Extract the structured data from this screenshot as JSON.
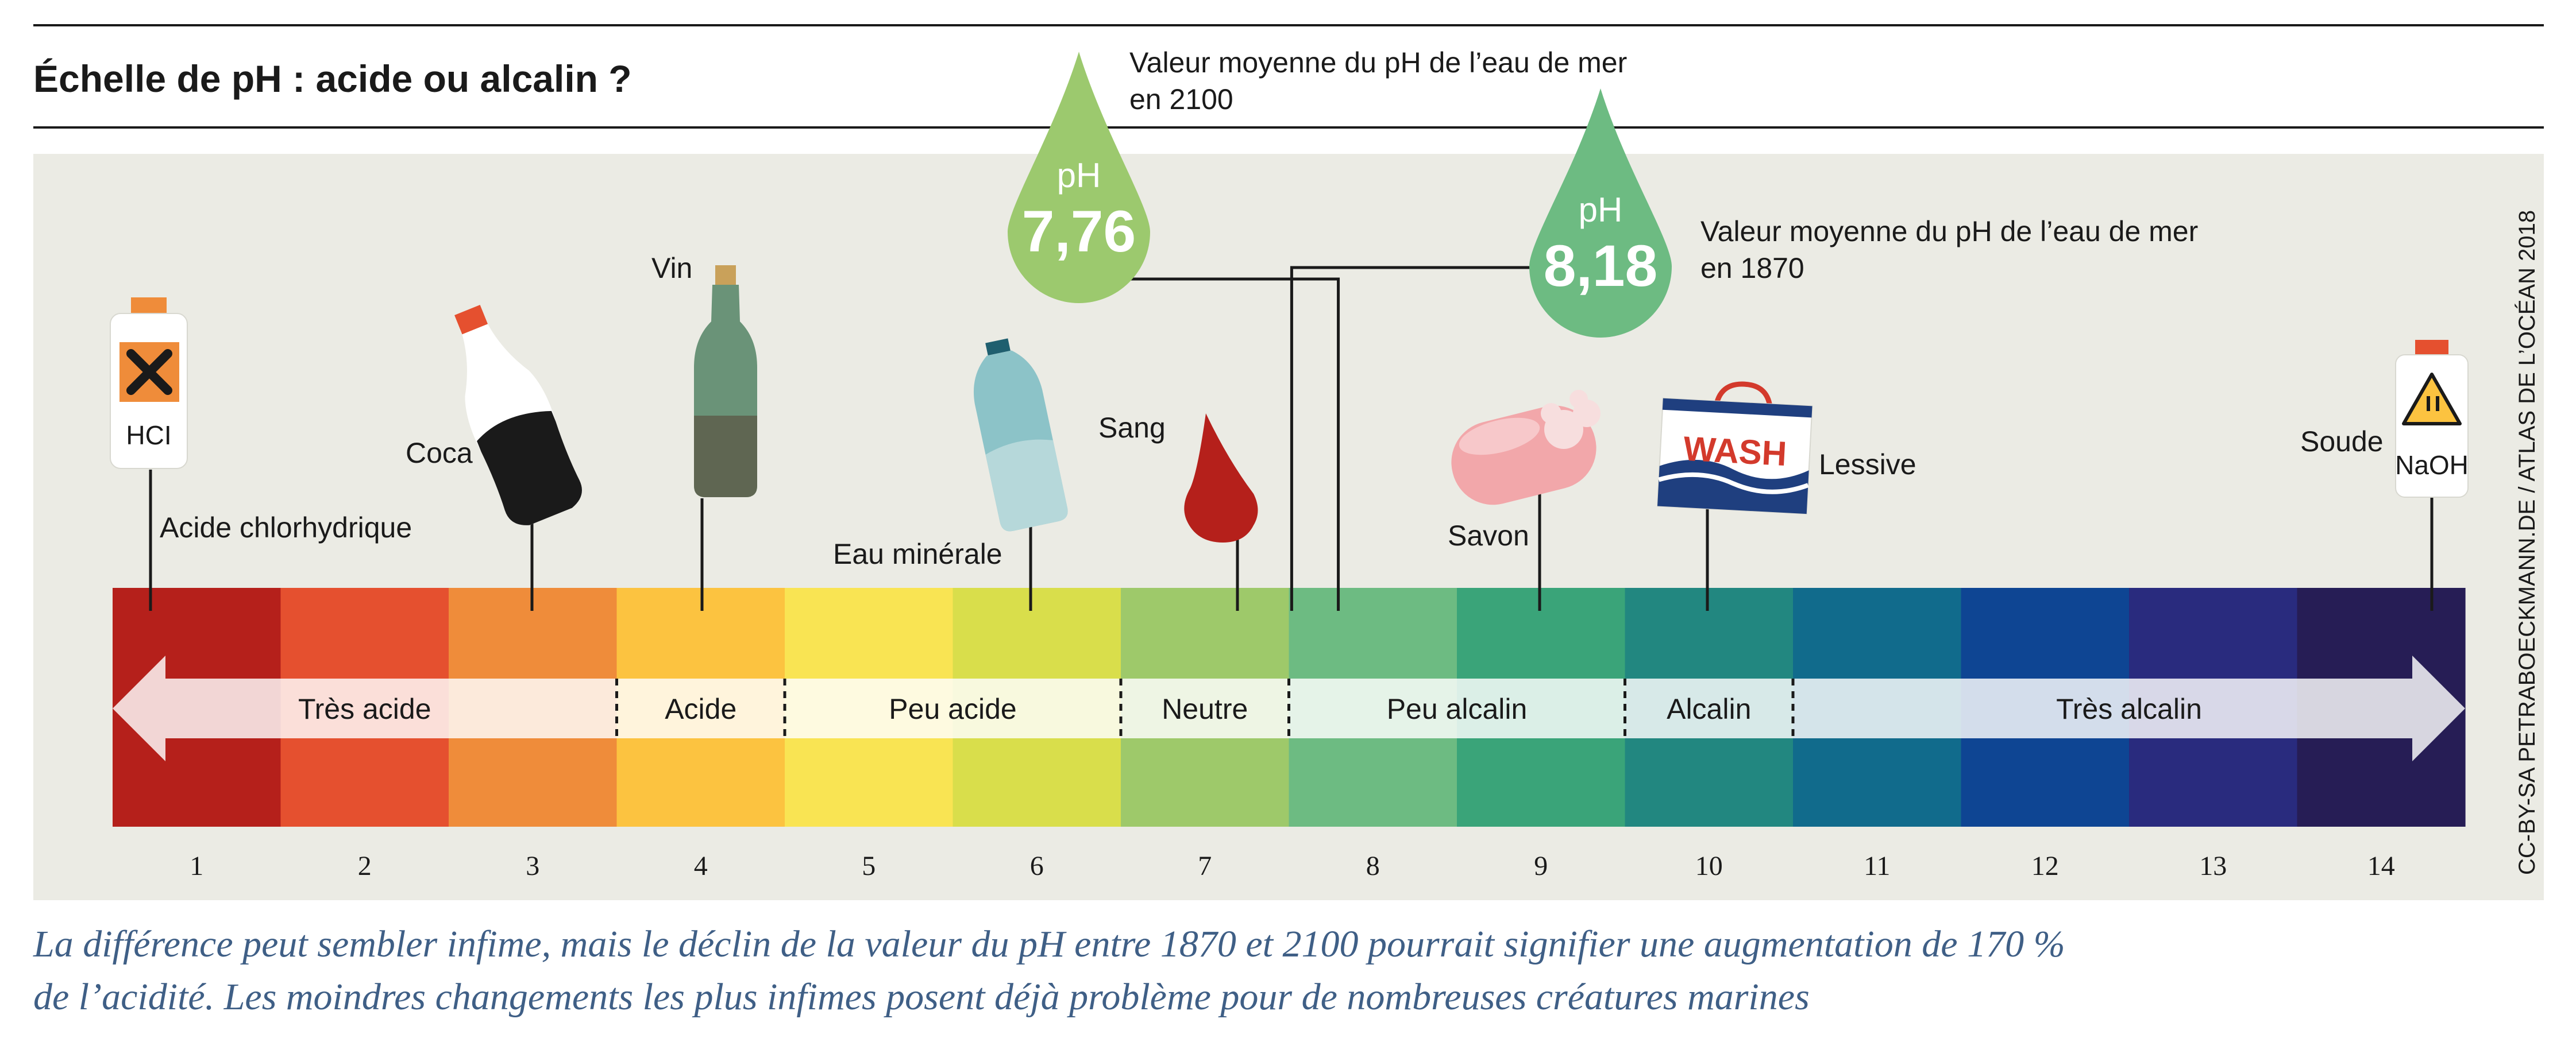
{
  "title": "Échelle de pH : acide ou alcalin ?",
  "scale": {
    "numbers": [
      "1",
      "2",
      "3",
      "4",
      "5",
      "6",
      "7",
      "8",
      "9",
      "10",
      "11",
      "12",
      "13",
      "14"
    ],
    "colors": [
      "#b5201b",
      "#e5502f",
      "#ef8c3a",
      "#fcc340",
      "#f9e453",
      "#d9de4b",
      "#9ec96a",
      "#6dbb82",
      "#3aa479",
      "#228780",
      "#116b8c",
      "#0e4593",
      "#292b7e",
      "#261d55"
    ],
    "bands": [
      {
        "label": "Très acide"
      },
      {
        "label": "Acide"
      },
      {
        "label": "Peu acide"
      },
      {
        "label": "Neutre"
      },
      {
        "label": "Peu alcalin"
      },
      {
        "label": "Alcalin"
      },
      {
        "label": "Très alcalin"
      }
    ]
  },
  "substances": {
    "hcl": {
      "label": "Acide chlorhydrique",
      "tag": "HCI"
    },
    "coca": {
      "label": "Coca"
    },
    "vin": {
      "label": "Vin"
    },
    "eau": {
      "label": "Eau minérale"
    },
    "sang": {
      "label": "Sang"
    },
    "savon": {
      "label": "Savon"
    },
    "lessive": {
      "label": "Lessive",
      "tag": "WASH"
    },
    "soude": {
      "label": "Soude",
      "tag": "NaOH"
    }
  },
  "drops": {
    "y2100": {
      "ph": 7.76,
      "prefix": "pH",
      "value_text": "7,76",
      "caption_line1": "Valeur moyenne du pH de l’eau de mer",
      "caption_line2": "en 2100",
      "color": "#9cc96e"
    },
    "y1870": {
      "ph": 8.18,
      "prefix": "pH",
      "value_text": "8,18",
      "caption_line1": "Valeur moyenne du pH de l’eau de mer",
      "caption_line2": "en 1870",
      "color": "#6dbb82"
    }
  },
  "credit": "CC-BY-SA PETRABOECKMANN.DE / ATLAS DE L’OCÉAN 2018",
  "caption": {
    "line1": "La différence peut sembler infime, mais le déclin de la valeur du pH entre 1870 et 2100 pourrait signifier une augmentation de 170 %",
    "line2": "de l’acidité. Les moindres changements les plus infimes posent déjà problème pour de nombreuses créatures marines"
  }
}
